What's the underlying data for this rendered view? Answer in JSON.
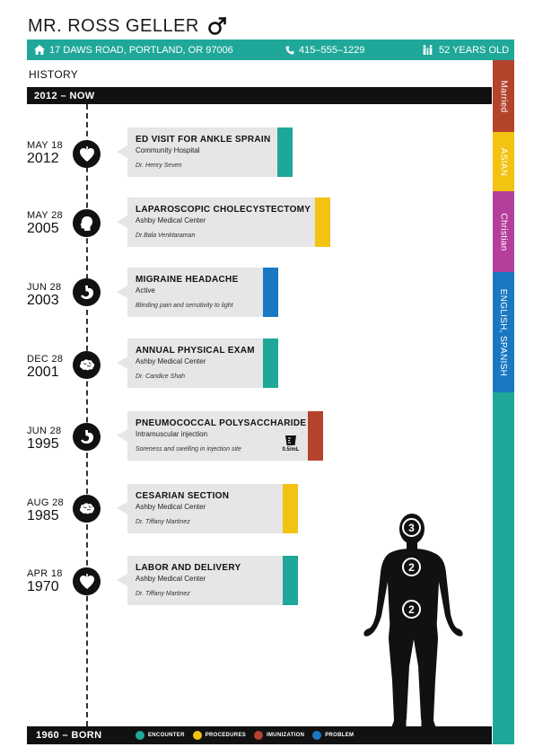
{
  "patient": {
    "name": "MR. ROSS GELLER",
    "address": "17 DAWS ROAD, PORTLAND, OR 97006",
    "phone": "415–555–1229",
    "age": "52 YEARS OLD"
  },
  "section_label": "HISTORY",
  "top_bar_label": "2012 – NOW",
  "bottom_bar_label": "1960 – BORN",
  "side_tabs": [
    {
      "label": "Married",
      "color": "#b4432c"
    },
    {
      "label": "ASIAN",
      "color": "#f2c311"
    },
    {
      "label": "Christian",
      "color": "#b53e9b"
    },
    {
      "label": "ENGLISH, SPANISH",
      "color": "#1a78c2"
    },
    {
      "label": "",
      "color": "#1fa89a"
    }
  ],
  "events": [
    {
      "month_day": "MAY 18",
      "year": "2012",
      "icon": "heart-icon",
      "title": "ED VISIT FOR ANKLE SPRAIN",
      "subtitle": "Community Hospital",
      "note": "Dr. Henry Seven",
      "category": "encounter"
    },
    {
      "month_day": "MAY 28",
      "year": "2005",
      "icon": "head-icon",
      "title": "LAPAROSCOPIC CHOLECYSTECTOMY",
      "subtitle": "Ashby Medical Center",
      "note": "Dr.Bala  Venktaraman",
      "category": "procedures"
    },
    {
      "month_day": "JUN 28",
      "year": "2003",
      "icon": "stomach-icon",
      "title": "MIGRAINE HEADACHE",
      "subtitle": "Active",
      "note": "Blinding pain and sensitivity to light",
      "category": "problem"
    },
    {
      "month_day": "DEC 28",
      "year": "2001",
      "icon": "brain-icon",
      "title": "ANNUAL PHYSICAL EXAM",
      "subtitle": "Ashby Medical Center",
      "note": "Dr. Candice Shah",
      "category": "encounter"
    },
    {
      "month_day": "JUN 28",
      "year": "1995",
      "icon": "stomach-icon",
      "title": "PNEUMOCOCCAL POLYSACCHARIDE",
      "subtitle": "Intramuscular injection",
      "note": "Soreness and swelling in injection site",
      "category": "imunization",
      "dose": "0.5/mL"
    },
    {
      "month_day": "AUG 28",
      "year": "1985",
      "icon": "brain-icon",
      "title": "CESARIAN SECTION",
      "subtitle": "Ashby Medical Center",
      "note": "Dr.  Tiffany  Martinez",
      "category": "procedures"
    },
    {
      "month_day": "APR 18",
      "year": "1970",
      "icon": "heart-icon",
      "title": "LABOR AND DELIVERY",
      "subtitle": "Ashby Medical Center",
      "note": "Dr. Tiffany Martinez",
      "category": "encounter"
    }
  ],
  "legend": [
    {
      "label": "ENCOUNTER",
      "color": "#1fa89a"
    },
    {
      "label": "PROCEDURES",
      "color": "#f2c311"
    },
    {
      "label": "IMUNIZATION",
      "color": "#b4432c"
    },
    {
      "label": "PROBLEM",
      "color": "#1a78c2"
    }
  ],
  "body_markers": [
    {
      "region": "head",
      "count": "3"
    },
    {
      "region": "chest",
      "count": "2"
    },
    {
      "region": "abdomen",
      "count": "2"
    }
  ]
}
